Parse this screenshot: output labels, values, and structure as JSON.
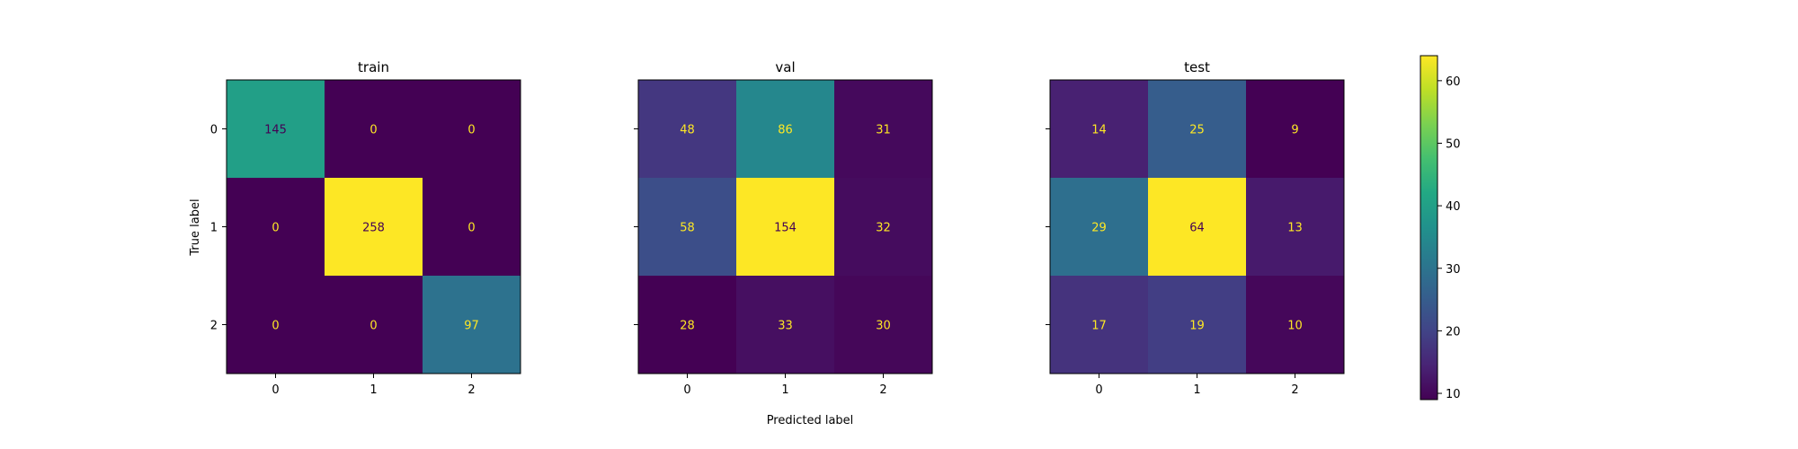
{
  "chart_data": {
    "type": "heatmap",
    "colormap": "viridis",
    "xlabel": "Predicted label",
    "ylabel": "True label",
    "text_color_light": "#440154",
    "text_color_dark": "#fde725",
    "colorbar": {
      "range": [
        9,
        64
      ],
      "ticks": [
        10,
        20,
        30,
        40,
        50,
        60
      ]
    },
    "panels": [
      {
        "title": "train",
        "x_categories": [
          "0",
          "1",
          "2"
        ],
        "y_categories": [
          "0",
          "1",
          "2"
        ],
        "show_y_ticklabels": true,
        "matrix": [
          [
            145,
            0,
            0
          ],
          [
            0,
            258,
            0
          ],
          [
            0,
            0,
            97
          ]
        ]
      },
      {
        "title": "val",
        "x_categories": [
          "0",
          "1",
          "2"
        ],
        "y_categories": [
          "0",
          "1",
          "2"
        ],
        "show_y_ticklabels": false,
        "matrix": [
          [
            48,
            86,
            31
          ],
          [
            58,
            154,
            32
          ],
          [
            28,
            33,
            30
          ]
        ]
      },
      {
        "title": "test",
        "x_categories": [
          "0",
          "1",
          "2"
        ],
        "y_categories": [
          "0",
          "1",
          "2"
        ],
        "show_y_ticklabels": false,
        "matrix": [
          [
            14,
            25,
            9
          ],
          [
            29,
            64,
            13
          ],
          [
            17,
            19,
            10
          ]
        ]
      }
    ]
  }
}
